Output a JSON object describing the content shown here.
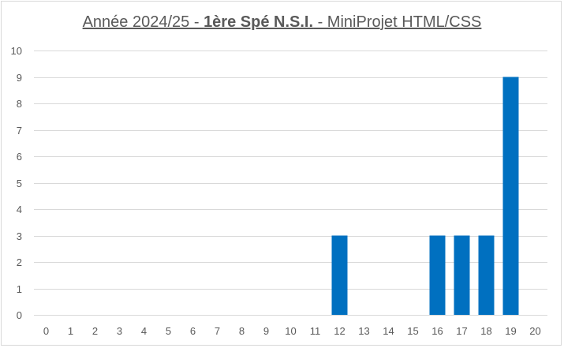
{
  "chart_data": {
    "type": "bar",
    "title": {
      "prefix": "Année 2024/25 - ",
      "bold": "1ère Spé N.S.I.",
      "suffix": " - MiniProjet HTML/CSS"
    },
    "categories": [
      "0",
      "1",
      "2",
      "3",
      "4",
      "5",
      "6",
      "7",
      "8",
      "9",
      "10",
      "11",
      "12",
      "13",
      "14",
      "15",
      "16",
      "17",
      "18",
      "19",
      "20"
    ],
    "values": [
      0,
      0,
      0,
      0,
      0,
      0,
      0,
      0,
      0,
      0,
      0,
      0,
      3,
      0,
      0,
      0,
      3,
      3,
      3,
      9,
      0
    ],
    "xlabel": "",
    "ylabel": "",
    "ylim": [
      0,
      10
    ],
    "yticks": [
      0,
      1,
      2,
      3,
      4,
      5,
      6,
      7,
      8,
      9,
      10
    ],
    "grid": true,
    "bar_color": "#0070c0",
    "grid_color": "#d9d9d9",
    "text_color": "#595959"
  }
}
